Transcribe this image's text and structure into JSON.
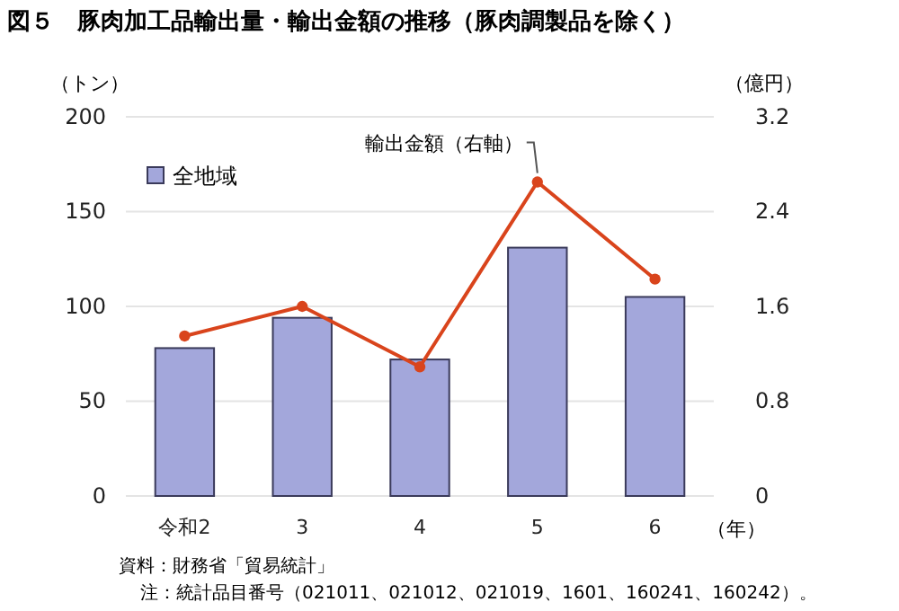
{
  "chart_data": {
    "type": "bar",
    "title": "図５　豚肉加工品輸出量・輸出金額の推移（豚肉調製品を除く）",
    "categories": [
      "令和2",
      "3",
      "4",
      "5",
      "6"
    ],
    "xlabel": "（年）",
    "ylabel": "（トン）",
    "y2label": "（億円）",
    "series": [
      {
        "name": "全地域",
        "color": "#a3a7db",
        "values": [
          78,
          94,
          72,
          131,
          105
        ]
      },
      {
        "name": "輸出金額（右軸）",
        "type": "line",
        "axis": "y2",
        "color": "#d9441c",
        "values": [
          1.35,
          1.6,
          1.09,
          2.65,
          1.83
        ]
      }
    ],
    "ylim": [
      0,
      200
    ],
    "yticks": [
      0,
      50,
      100,
      150,
      200
    ],
    "y2lim": [
      0,
      3.2
    ],
    "y2ticks": [
      {
        "value": 0,
        "label": "0"
      },
      {
        "value": 0.8,
        "label": "0.8"
      },
      {
        "value": 1.6,
        "label": "1.6"
      },
      {
        "value": 2.4,
        "label": "2.4"
      },
      {
        "value": 3.2,
        "label": "3.2"
      }
    ],
    "grid": "y",
    "legend": "top left",
    "marker": "circle",
    "annotations": [
      "資料：財務省「貿易統計」",
      "注：統計品目番号（021011、021012、021019、1601、160241、160242）。"
    ]
  }
}
